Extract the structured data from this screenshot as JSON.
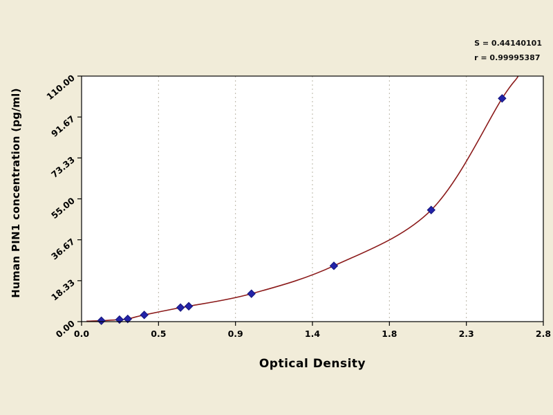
{
  "chart_data": {
    "type": "scatter",
    "title": "",
    "xlabel": "Optical Density",
    "ylabel": "Human PIN1 concentration (pg/ml)",
    "xlim": [
      0.0,
      2.8
    ],
    "ylim": [
      0.0,
      110.0
    ],
    "x_tick_labels": [
      "0.0",
      "0.5",
      "0.9",
      "1.4",
      "1.8",
      "2.3",
      "2.8"
    ],
    "y_tick_labels": [
      "110.00",
      "91.67",
      "73.33",
      "55.00",
      "36.67",
      "18.33",
      "0.00"
    ],
    "grid": "vertical-dashed",
    "legend_position": "none",
    "annotations": {
      "line1": "S = 0.44140101",
      "line2": "r = 0.99995387"
    },
    "series": [
      {
        "name": "standard-curve",
        "marker": "diamond",
        "points": [
          [
            0.12,
            0.4
          ],
          [
            0.23,
            0.9
          ],
          [
            0.28,
            1.2
          ],
          [
            0.38,
            3.0
          ],
          [
            0.6,
            6.3
          ],
          [
            0.65,
            6.9
          ],
          [
            1.03,
            12.5
          ],
          [
            1.53,
            25.0
          ],
          [
            2.12,
            50.0
          ],
          [
            2.55,
            100.0
          ]
        ]
      }
    ],
    "curve_extension_points": [
      [
        0.03,
        0.2
      ],
      [
        2.66,
        112.0
      ],
      [
        2.74,
        132.0
      ]
    ],
    "colors": {
      "background": "#f1ecd9",
      "plot_background": "#ffffff",
      "curve": "#8b1a1a",
      "marker_fill": "#2323a8",
      "marker_stroke": "#15157a",
      "grid": "#b9b4a6",
      "axis": "#000000"
    }
  }
}
